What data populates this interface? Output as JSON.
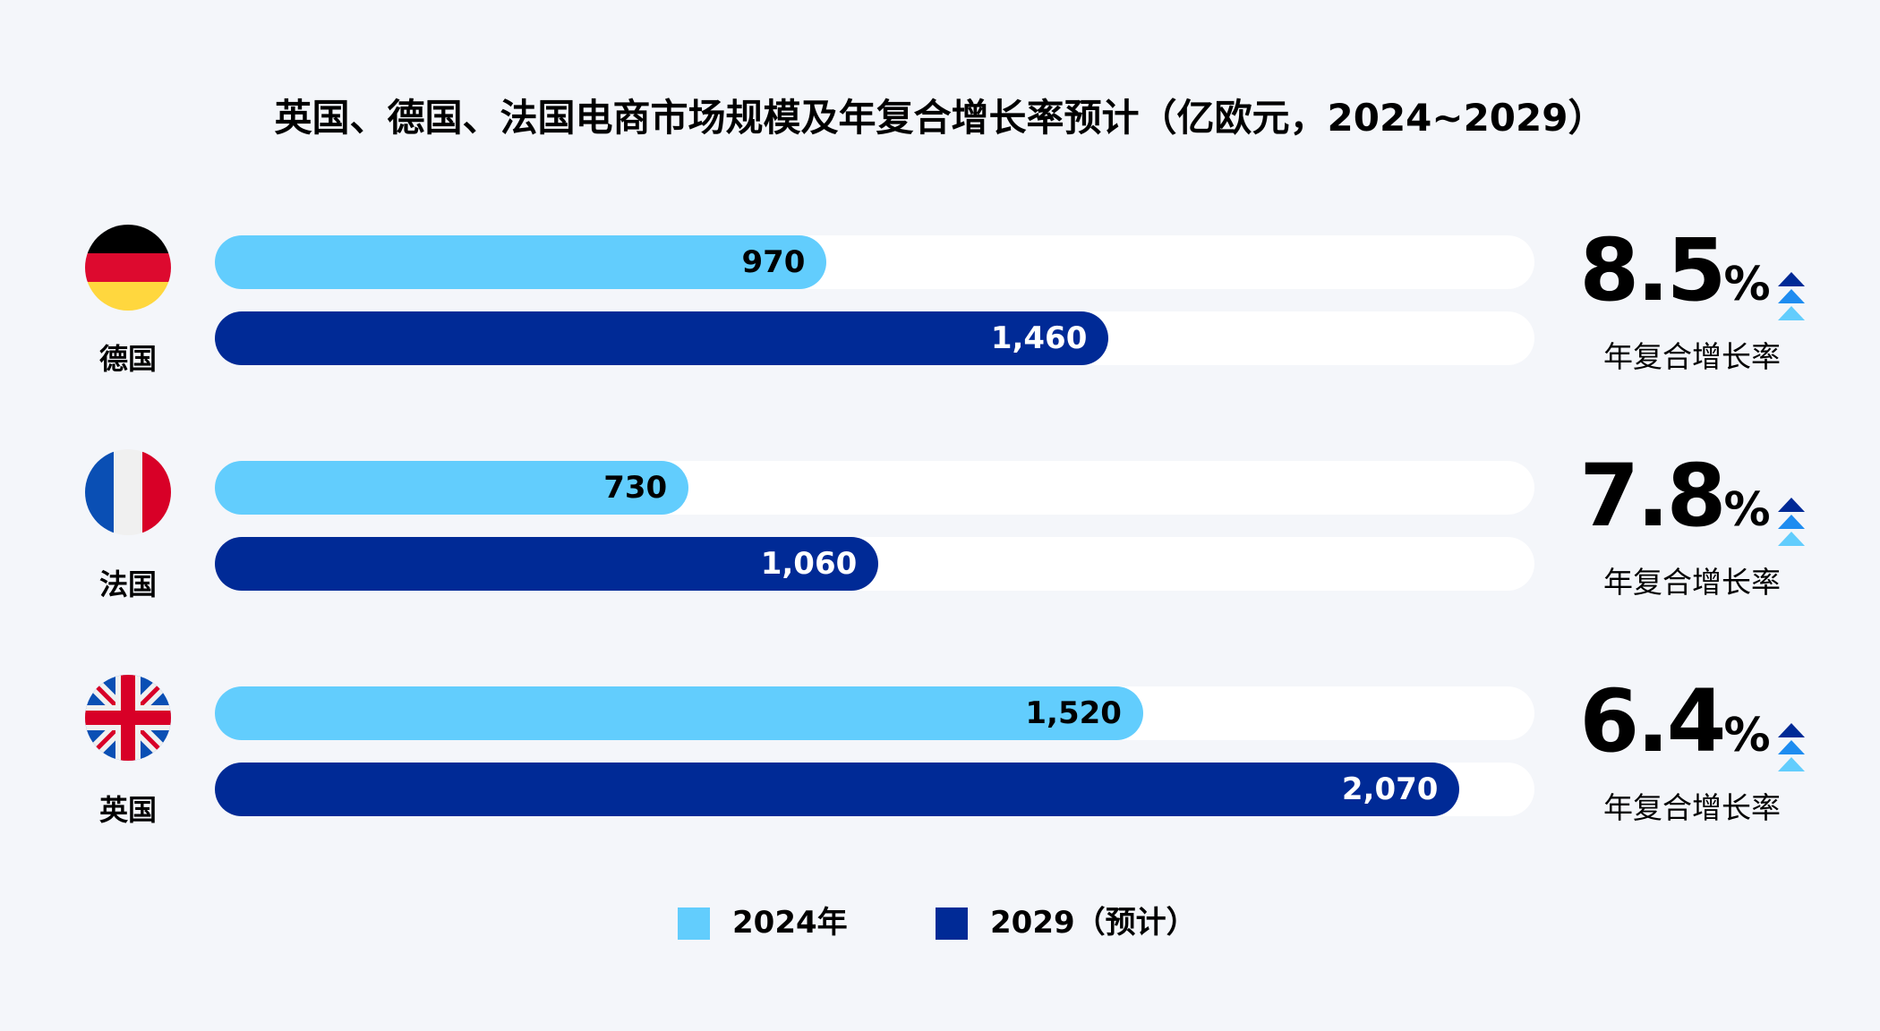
{
  "chart_data": {
    "type": "bar",
    "orientation": "horizontal",
    "title": "英国、德国、法国电商市场规模及年复合增长率预计（亿欧元，2024~2029）",
    "categories": [
      "德国",
      "法国",
      "英国"
    ],
    "series": [
      {
        "name": "2024年",
        "values": [
          970,
          730,
          1520
        ],
        "labels": [
          "970",
          "730",
          "1,520"
        ],
        "color": "#62cdfd"
      },
      {
        "name": "2029（预计）",
        "values": [
          1460,
          1060,
          2070
        ],
        "labels": [
          "1,460",
          "1,060",
          "2,070"
        ],
        "color": "#002a96"
      }
    ],
    "cagr": [
      {
        "value": "8.5",
        "unit": "%",
        "label": "年复合增长率"
      },
      {
        "value": "7.8",
        "unit": "%",
        "label": "年复合增长率"
      },
      {
        "value": "6.4",
        "unit": "%",
        "label": "年复合增长率"
      }
    ],
    "legend": "bottom",
    "flags": [
      "germany-flag",
      "france-flag",
      "uk-flag"
    ],
    "arrow_colors": [
      "#002a96",
      "#1e8cf0",
      "#62cdfd"
    ]
  }
}
